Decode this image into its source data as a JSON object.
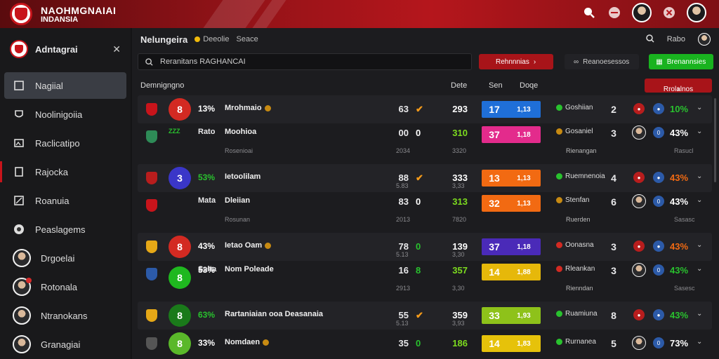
{
  "app": {
    "brand_line1": "NAOHMGNAIAI",
    "brand_line2": "INDANSIA"
  },
  "sidebar": {
    "title": "Adntagrai",
    "items": [
      {
        "label": "Nagiial",
        "icon": "grid-icon",
        "active": true
      },
      {
        "label": "Noolinigoiia",
        "icon": "shield-icon"
      },
      {
        "label": "Raclicatipo",
        "icon": "image-icon"
      },
      {
        "label": "Rajocka",
        "icon": "document-icon"
      },
      {
        "label": "Roanuia",
        "icon": "chart-icon"
      },
      {
        "label": "Peaslagems",
        "icon": "ball-icon"
      },
      {
        "label": "Drgoelai",
        "icon": "avatar"
      },
      {
        "label": "Rotonala",
        "icon": "avatar"
      },
      {
        "label": "Ntranokans",
        "icon": "avatar"
      },
      {
        "label": "Granagiai",
        "icon": "avatar"
      }
    ]
  },
  "main": {
    "title": "Nelungeira",
    "sub1": "Deeolie",
    "sub2": "Seace",
    "right_label": "Rabo"
  },
  "toolbar": {
    "search_value": "Reranitans  RAGHANCAI",
    "btn_red": "Rehnnnias",
    "btn_dark": "Reanoesessos",
    "btn_green": "Brenannsies"
  },
  "table": {
    "col_team": "Demnigngno",
    "col_a": "Dete",
    "col_b": "Sen",
    "col_c": "Doqe",
    "action": "Rrolalnos"
  },
  "rows": [
    {
      "circ": "8",
      "circ_color": "#d32a22",
      "crest_color": "#c8141b",
      "pct": "13%",
      "pct_color": "#ffffff",
      "name": "Mrohmaio",
      "coin": true,
      "n1": "63",
      "mark": "✔",
      "mark_color": "#f59b1a",
      "n2": "293",
      "n2_color": "#ffffff",
      "score_a": "17",
      "score_b": "1,13",
      "score_color": "#1f6fd8",
      "stat": "Goshiian",
      "stat_color": "#29c22e",
      "rank": "2",
      "r1_color": "#b81d1d",
      "r1_label": "●",
      "r2_label": "●",
      "rpct": "10%",
      "rpct_color": "#29c22e",
      "tall": false
    },
    {
      "circ": "",
      "crest_color": "#2e8b57",
      "pct": "",
      "pct_color": "#ffffff",
      "name": "Moohioa",
      "pre": "Rato",
      "sub_left": "ZZZ",
      "sub_name": "Rosenioai",
      "coin": false,
      "n1": "00",
      "mark": "0",
      "mark_color": "#ffffff",
      "n2": "310",
      "n2_color": "#7ddc1f",
      "sub_n1": "2034",
      "sub_n2": "3320",
      "score_a": "37",
      "score_b": "1,18",
      "score_color": "#e32b8c",
      "stat": "Gosaniel",
      "stat_color": "#c78a12",
      "stat_sub": "Rienangan",
      "rank": "3",
      "avatar": true,
      "r2_label": "0",
      "rpct": "43%",
      "rpct_color": "#ffffff",
      "rpct_sub": "Rasucl",
      "tall": true
    },
    {
      "circ": "3",
      "circ_color": "#3a36c8",
      "crest_color": "#b81d1d",
      "pct": "53%",
      "pct_color": "#29c22e",
      "name": "Ietoolilam",
      "coin": false,
      "n1": "88",
      "sub_n1": "5.83",
      "mark": "✔",
      "mark_color": "#f59b1a",
      "n2": "333",
      "n2_color": "#ffffff",
      "sub_n2": "3,33",
      "score_a": "13",
      "score_b": "1,13",
      "score_color": "#f26a12",
      "stat": "Ruemnenoia",
      "stat_color": "#29c22e",
      "rank": "4",
      "r1_color": "#b81d1d",
      "r1_label": "●",
      "r2_label": "●",
      "rpct": "43%",
      "rpct_color": "#f26a12",
      "tall": false
    },
    {
      "circ": "",
      "crest_color": "#c8141b",
      "pct": "",
      "pct_color": "#ffffff",
      "name": "Dleiian",
      "pre": "Mata",
      "sub_name": "Rosunan",
      "coin": false,
      "n1": "83",
      "mark": "0",
      "mark_color": "#ffffff",
      "n2": "313",
      "n2_color": "#7ddc1f",
      "sub_n1": "2013",
      "sub_n2": "7820",
      "score_a": "32",
      "score_b": "1,13",
      "score_color": "#f26a12",
      "stat": "Stenfan",
      "stat_color": "#c78a12",
      "stat_sub": "Ruerden",
      "rank": "6",
      "avatar": true,
      "r2_label": "0",
      "rpct": "43%",
      "rpct_color": "#ffffff",
      "rpct_sub": "Sasasc",
      "tall": true
    },
    {
      "circ": "8",
      "circ_color": "#d32a22",
      "crest_color": "#e6a817",
      "pct": "43%",
      "pct_color": "#ffffff",
      "name": "Ietao Oam",
      "coin": true,
      "n1": "78",
      "sub_n1": "5.13",
      "mark": "0",
      "mark_color": "#29c22e",
      "n2": "139",
      "n2_color": "#ffffff",
      "sub_n2": "3,30",
      "score_a": "37",
      "score_b": "1,18",
      "score_color": "#4a2ab8",
      "stat": "Oonasna",
      "stat_color": "#d32a22",
      "rank": "3",
      "r1_color": "#b81d1d",
      "r1_label": "●",
      "r2_label": "●",
      "rpct": "43%",
      "rpct_color": "#f26a12",
      "tall": false
    },
    {
      "circ": "8",
      "circ_color": "#1fb81f",
      "crest_color": "#2c5aa8",
      "pct": "53%",
      "pct_color": "#ffffff",
      "name": "Nom Poleade",
      "pre": "Salta",
      "coin": false,
      "n1": "16",
      "mark": "8",
      "mark_color": "#29c22e",
      "n2": "357",
      "n2_color": "#7ddc1f",
      "sub_n1": "2913",
      "sub_n2": "3,30",
      "score_a": "14",
      "score_b": "1,88",
      "score_color": "#e6b80a",
      "stat": "Rleankan",
      "stat_color": "#d32a22",
      "stat_sub": "Rienndan",
      "rank": "3",
      "avatar": true,
      "r2_label": "0",
      "rpct": "43%",
      "rpct_color": "#29c22e",
      "rpct_sub": "Sasesc",
      "tall": true
    },
    {
      "circ": "8",
      "circ_color": "#1a7a1a",
      "crest_color": "#e6a817",
      "pct": "63%",
      "pct_color": "#29c22e",
      "name": "Rartaniaian ooa Deasanaia",
      "coin": false,
      "n1": "55",
      "sub_n1": "5.13",
      "mark": "✔",
      "mark_color": "#f59b1a",
      "n2": "359",
      "n2_color": "#ffffff",
      "sub_n2": "3,93",
      "score_a": "33",
      "score_b": "1,93",
      "score_color": "#8ec21a",
      "stat": "Ruamiuna",
      "stat_color": "#29c22e",
      "rank": "8",
      "r1_color": "#b81d1d",
      "r1_label": "●",
      "r2_label": "●",
      "rpct": "43%",
      "rpct_color": "#29c22e",
      "tall": false
    },
    {
      "circ": "8",
      "circ_color": "#5ab82a",
      "crest_color": "#555",
      "pct": "33%",
      "pct_color": "#ffffff",
      "name": "Nomdaen",
      "coin": true,
      "n1": "35",
      "mark": "0",
      "mark_color": "#29c22e",
      "n2": "186",
      "n2_color": "#7ddc1f",
      "score_a": "14",
      "score_b": "1,83",
      "score_color": "#e6c20a",
      "stat": "Rurnanea",
      "stat_color": "#29c22e",
      "rank": "5",
      "avatar": true,
      "r2_label": "0",
      "rpct": "73%",
      "rpct_color": "#ffffff",
      "tall": false
    }
  ]
}
